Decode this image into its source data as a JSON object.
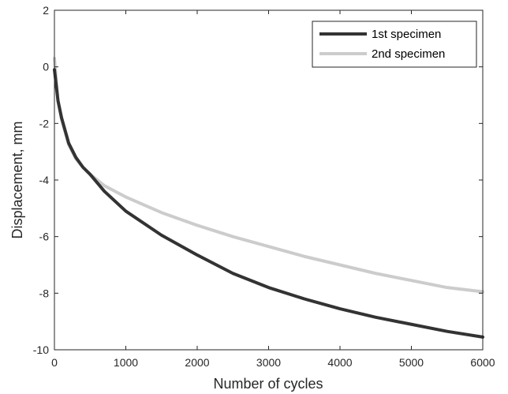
{
  "chart_data": {
    "type": "line",
    "title": "",
    "xlabel": "Number of cycles",
    "ylabel": "Displacement, mm",
    "xlim": [
      0,
      6000
    ],
    "ylim": [
      -10,
      2
    ],
    "xticks": [
      0,
      1000,
      2000,
      3000,
      4000,
      5000,
      6000
    ],
    "yticks": [
      -10,
      -8,
      -6,
      -4,
      -2,
      0,
      2
    ],
    "grid": false,
    "legend_position": "top-right",
    "series": [
      {
        "name": "1st specimen",
        "color": "#333333",
        "x": [
          0,
          50,
          100,
          200,
          300,
          400,
          500,
          700,
          1000,
          1500,
          2000,
          2500,
          3000,
          3500,
          4000,
          4500,
          5000,
          5500,
          6000
        ],
        "y": [
          -0.1,
          -1.2,
          -1.8,
          -2.7,
          -3.2,
          -3.55,
          -3.8,
          -4.4,
          -5.1,
          -5.95,
          -6.65,
          -7.3,
          -7.8,
          -8.2,
          -8.55,
          -8.85,
          -9.1,
          -9.35,
          -9.55
        ]
      },
      {
        "name": "2nd specimen",
        "color": "#cccccc",
        "x": [
          0,
          50,
          100,
          200,
          300,
          400,
          500,
          700,
          1000,
          1500,
          2000,
          2500,
          3000,
          3500,
          4000,
          4500,
          5000,
          5500,
          6000
        ],
        "y": [
          0.3,
          -1.2,
          -1.85,
          -2.75,
          -3.25,
          -3.55,
          -3.8,
          -4.2,
          -4.6,
          -5.15,
          -5.6,
          -6.0,
          -6.35,
          -6.7,
          -7.0,
          -7.3,
          -7.55,
          -7.8,
          -7.95
        ]
      }
    ]
  }
}
